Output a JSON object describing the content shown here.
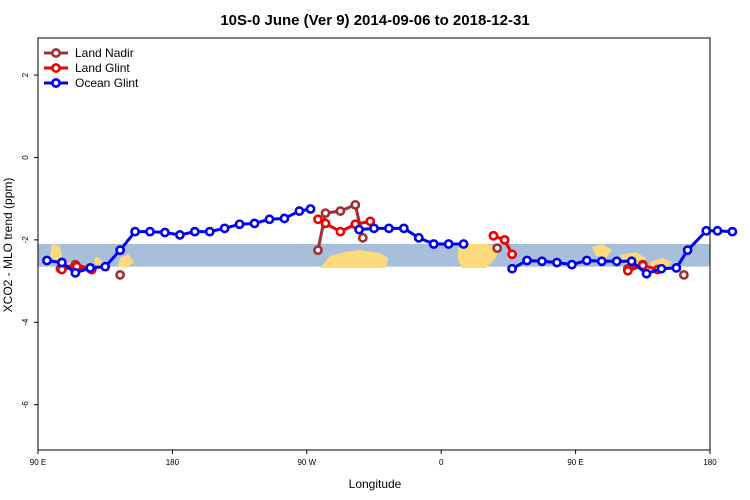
{
  "chart_data": {
    "type": "line",
    "title": "10S-0 June (Ver 9)   2014-09-06 to 2018-12-31",
    "xlabel": "Longitude",
    "ylabel": "XCO2 - MLO trend (ppm)",
    "xlim": [
      90,
      450
    ],
    "ylim": [
      -7.1,
      2.9
    ],
    "x_ticks": [
      90,
      180,
      270,
      360,
      450,
      540
    ],
    "x_ticks_plot": [
      90,
      180,
      270,
      360,
      450,
      540
    ],
    "x_tick_labels": [
      "90 E",
      "180",
      "90 W",
      "0",
      "90 E",
      "180"
    ],
    "y_ticks": [
      -6,
      -4,
      -2,
      0,
      2
    ],
    "y_tick_labels": [
      "-6",
      "-4",
      "-2",
      "0",
      "2"
    ],
    "legend_position": "top-left",
    "background_band": {
      "ymin": -2.65,
      "ymax": -2.1,
      "color": "#a8bfdc",
      "land_color": "#fcd97a"
    },
    "series": [
      {
        "name": "Land Nadir",
        "color": "#a03030",
        "segments": [
          {
            "x": [
              105,
              115,
              125
            ],
            "y": [
              -2.7,
              -2.6,
              -2.7
            ]
          },
          {
            "x": [
              145
            ],
            "y": [
              -2.85
            ]
          },
          {
            "x": [
              277.5,
              282.5,
              292.5,
              302.5,
              307.5
            ],
            "y": [
              -2.25,
              -1.35,
              -1.3,
              -1.15,
              -1.95
            ]
          },
          {
            "x": [
              397.5
            ],
            "y": [
              -2.2
            ]
          },
          {
            "x": [
              485,
              495
            ],
            "y": [
              -2.7,
              -2.6
            ]
          },
          {
            "x": [
              522.5
            ],
            "y": [
              -2.85
            ]
          }
        ]
      },
      {
        "name": "Land Glint",
        "color": "#ee0000",
        "segments": [
          {
            "x": [
              106,
              116,
              126
            ],
            "y": [
              -2.72,
              -2.65,
              -2.72
            ]
          },
          {
            "x": [
              277.5,
              282.5,
              292.5,
              302.5,
              312.5
            ],
            "y": [
              -1.5,
              -1.6,
              -1.8,
              -1.62,
              -1.55
            ]
          },
          {
            "x": [
              395,
              402.5,
              407.5
            ],
            "y": [
              -1.9,
              -2.0,
              -2.35
            ]
          },
          {
            "x": [
              485,
              495,
              505
            ],
            "y": [
              -2.75,
              -2.62,
              -2.72
            ]
          }
        ]
      },
      {
        "name": "Ocean Glint",
        "color": "#0000ee",
        "segments": [
          {
            "x": [
              96,
              106,
              115,
              125,
              135,
              145,
              155,
              165,
              175,
              185,
              195,
              205,
              215,
              225,
              235,
              245,
              255,
              265,
              272.5
            ],
            "y": [
              -2.5,
              -2.55,
              -2.8,
              -2.68,
              -2.65,
              -2.25,
              -1.8,
              -1.8,
              -1.82,
              -1.88,
              -1.8,
              -1.8,
              -1.72,
              -1.62,
              -1.6,
              -1.5,
              -1.48,
              -1.3,
              -1.25
            ]
          },
          {
            "x": [
              305,
              315,
              325,
              335,
              345,
              355,
              365,
              375
            ],
            "y": [
              -1.75,
              -1.72,
              -1.72,
              -1.72,
              -1.95,
              -2.1,
              -2.1,
              -2.1
            ]
          },
          {
            "x": [
              407.5,
              417.5,
              427.5,
              437.5,
              447.5,
              457.5,
              467.5,
              477.5,
              487.5,
              497.5,
              507.5,
              517.5,
              525,
              537.5,
              545,
              555
            ],
            "y": [
              -2.7,
              -2.5,
              -2.52,
              -2.55,
              -2.6,
              -2.5,
              -2.52,
              -2.52,
              -2.52,
              -2.82,
              -2.7,
              -2.68,
              -2.25,
              -1.78,
              -1.78,
              -1.8
            ]
          }
        ]
      }
    ]
  }
}
